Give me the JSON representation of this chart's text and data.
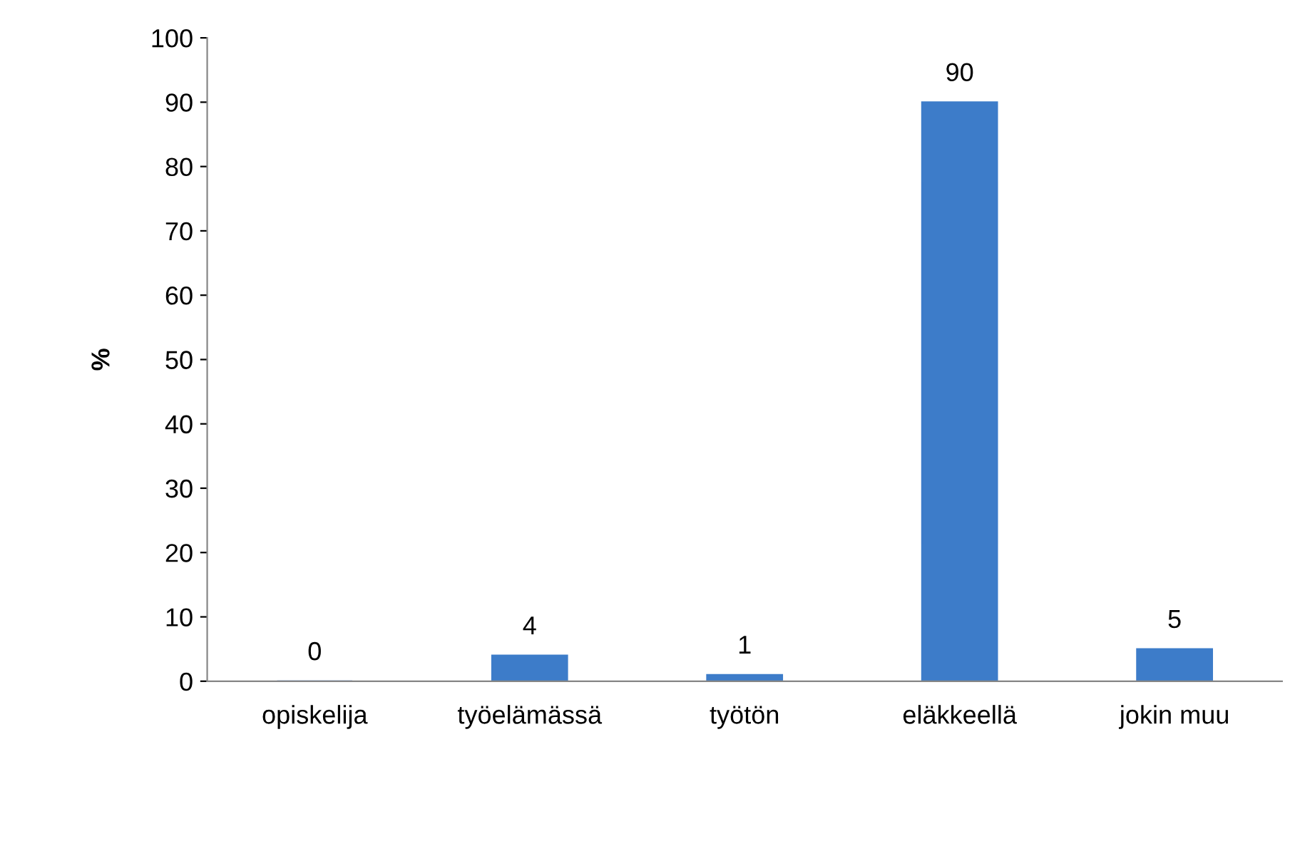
{
  "chart_data": {
    "type": "bar",
    "ylabel": "%",
    "categories": [
      "opiskelija",
      "työelämässä",
      "työtön",
      "eläkkeellä",
      "jokin muu"
    ],
    "values": [
      0,
      4,
      1,
      90,
      5
    ],
    "color": "#3d7cc9",
    "ylim": [
      0,
      100
    ],
    "yticks": [
      0,
      10,
      20,
      30,
      40,
      50,
      60,
      70,
      80,
      90,
      100
    ],
    "grid": false,
    "data_labels": true
  }
}
